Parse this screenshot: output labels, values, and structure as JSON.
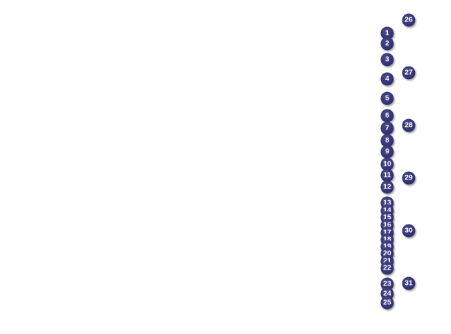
{
  "marker_color": "#33336f",
  "markers": [
    "1",
    "2",
    "3",
    "4",
    "5",
    "6",
    "7",
    "8",
    "9",
    "10",
    "11",
    "12",
    "13",
    "14",
    "15",
    "16",
    "17",
    "18",
    "19",
    "20",
    "21",
    "22",
    "23",
    "24",
    "25",
    "26",
    "27",
    "28",
    "29",
    "30",
    "31"
  ]
}
